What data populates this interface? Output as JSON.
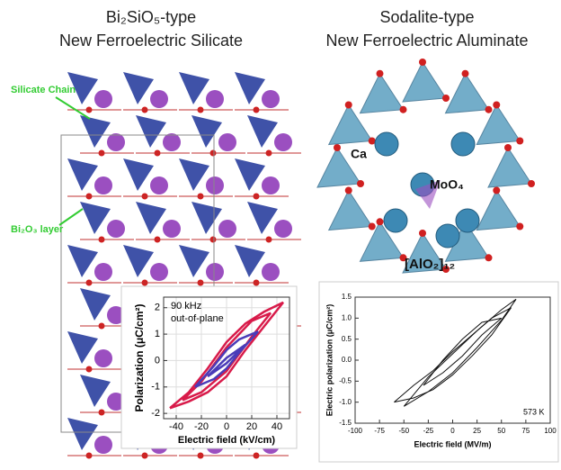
{
  "panels": {
    "left": {
      "title_line1": "Bi₂SiO₅-type",
      "title_line2": "New Ferroelectric Silicate",
      "label_chain": "Silicate Chain",
      "label_layer": "Bi₂O₃ layer"
    },
    "right": {
      "title_line1": "Sodalite-type",
      "title_line2": "New Ferroelectric Aluminate",
      "label_ca": "Ca",
      "label_moo4": "MoO₄",
      "label_alo2": "[AlO₂]₁₂"
    }
  },
  "chart_data": [
    {
      "type": "line",
      "xlabel": "Electric field (kV/cm)",
      "ylabel": "Polarization (μC/cm²)",
      "annotations": [
        "90 kHz",
        "out-of-plane"
      ],
      "xlim": [
        -50,
        50
      ],
      "ylim": [
        -2.2,
        2.4
      ],
      "xticks": [
        -40,
        -20,
        0,
        20,
        40
      ],
      "yticks": [
        -2,
        -1,
        0,
        1,
        2
      ],
      "grid": true,
      "series": [
        {
          "color": "#d81b4a",
          "x": [
            -45,
            -30,
            -15,
            0,
            15,
            30,
            45,
            30,
            15,
            0,
            -15,
            -30,
            -45
          ],
          "values": [
            -1.8,
            -1.55,
            -1.2,
            -0.6,
            0.4,
            1.3,
            2.2,
            1.85,
            1.4,
            0.7,
            -0.3,
            -1.2,
            -1.8
          ]
        },
        {
          "color": "#d81b4a",
          "x": [
            -35,
            -20,
            0,
            20,
            35,
            20,
            0,
            -20,
            -35
          ],
          "values": [
            -1.5,
            -1.2,
            -0.4,
            0.9,
            1.8,
            1.5,
            0.5,
            -0.8,
            -1.5
          ]
        },
        {
          "color": "#4a3cb8",
          "x": [
            -25,
            -10,
            0,
            10,
            25,
            10,
            0,
            -10,
            -25
          ],
          "values": [
            -1.0,
            -0.7,
            -0.3,
            0.3,
            1.1,
            0.8,
            0.4,
            -0.2,
            -1.0
          ]
        },
        {
          "color": "#4a3cb8",
          "x": [
            -15,
            0,
            15,
            0,
            -15
          ],
          "values": [
            -0.6,
            -0.1,
            0.6,
            0.1,
            -0.6
          ]
        }
      ]
    },
    {
      "type": "line",
      "xlabel": "Electric field (MV/m)",
      "ylabel": "Electric polarization (μC/cm²)",
      "annotations": [
        "573 K"
      ],
      "xlim": [
        -100,
        100
      ],
      "ylim": [
        -1.5,
        1.5
      ],
      "xticks": [
        -100,
        -75,
        -50,
        -25,
        0,
        25,
        50,
        75,
        100
      ],
      "yticks": [
        -1.5,
        {
          "value": -1,
          "label": "-1.0"
        },
        -0.5,
        {
          "value": 0,
          "label": "0.0"
        },
        0.5,
        {
          "value": 1,
          "label": "1.0"
        },
        1.5
      ],
      "grid": false,
      "series": [
        {
          "color": "#111111",
          "x": [
            -50,
            -25,
            0,
            25,
            50,
            65,
            50,
            25,
            0,
            -25,
            -50
          ],
          "values": [
            -1.1,
            -0.75,
            -0.3,
            0.3,
            0.95,
            1.45,
            1.2,
            0.7,
            0.15,
            -0.4,
            -1.1
          ]
        },
        {
          "color": "#111111",
          "x": [
            -30,
            -10,
            10,
            30,
            50,
            30,
            10,
            -10,
            -30
          ],
          "values": [
            -0.6,
            -0.3,
            0.1,
            0.6,
            1.0,
            0.9,
            0.5,
            0,
            -0.6
          ]
        },
        {
          "color": "#111111",
          "x": [
            -60,
            -40,
            -20,
            0,
            20,
            40,
            60,
            40,
            20,
            0,
            -20,
            -40,
            -60
          ],
          "values": [
            -1.0,
            -0.9,
            -0.7,
            -0.35,
            0.1,
            0.6,
            1.25,
            1.0,
            0.6,
            0.2,
            -0.25,
            -0.6,
            -1.0
          ]
        }
      ]
    }
  ]
}
